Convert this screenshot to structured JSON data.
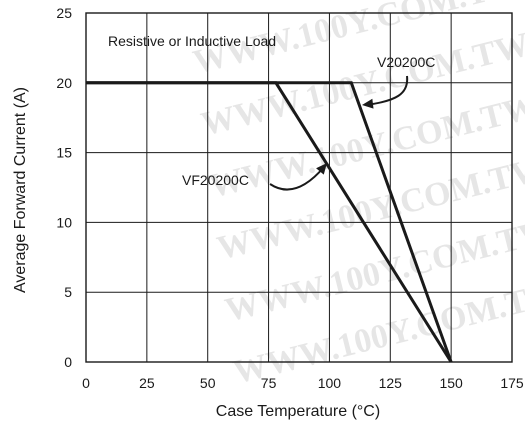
{
  "chart_data": {
    "type": "line",
    "x": [],
    "xlabel": "Case Temperature (°C)",
    "ylabel": "Average Forward Current (A)",
    "xlim": [
      0,
      175
    ],
    "ylim": [
      0,
      25
    ],
    "xticks": [
      0,
      25,
      50,
      75,
      100,
      125,
      150,
      175
    ],
    "yticks": [
      0,
      5,
      10,
      15,
      20,
      25
    ],
    "xtick_labels": [
      "0",
      "25",
      "50",
      "75",
      "100",
      "125",
      "150",
      "175"
    ],
    "ytick_labels": [
      "0",
      "5",
      "10",
      "15",
      "20",
      "25"
    ],
    "grid": true,
    "legend": "none",
    "series": [
      {
        "name": "V20200C",
        "points": [
          [
            0,
            20
          ],
          [
            109,
            20
          ],
          [
            150,
            0
          ]
        ]
      },
      {
        "name": "VF20200C",
        "points": [
          [
            0,
            20
          ],
          [
            78,
            20
          ],
          [
            150,
            0
          ]
        ]
      }
    ],
    "annotations": {
      "load_label": "Resistive or Inductive Load",
      "series_label_1": "V20200C",
      "series_label_2": "VF20200C"
    },
    "watermark": "WWW.100Y.COM.TW",
    "colors": {
      "line": "#1a1a1a",
      "grid": "#1a1a1a",
      "watermark": "#e6e6e6"
    }
  }
}
